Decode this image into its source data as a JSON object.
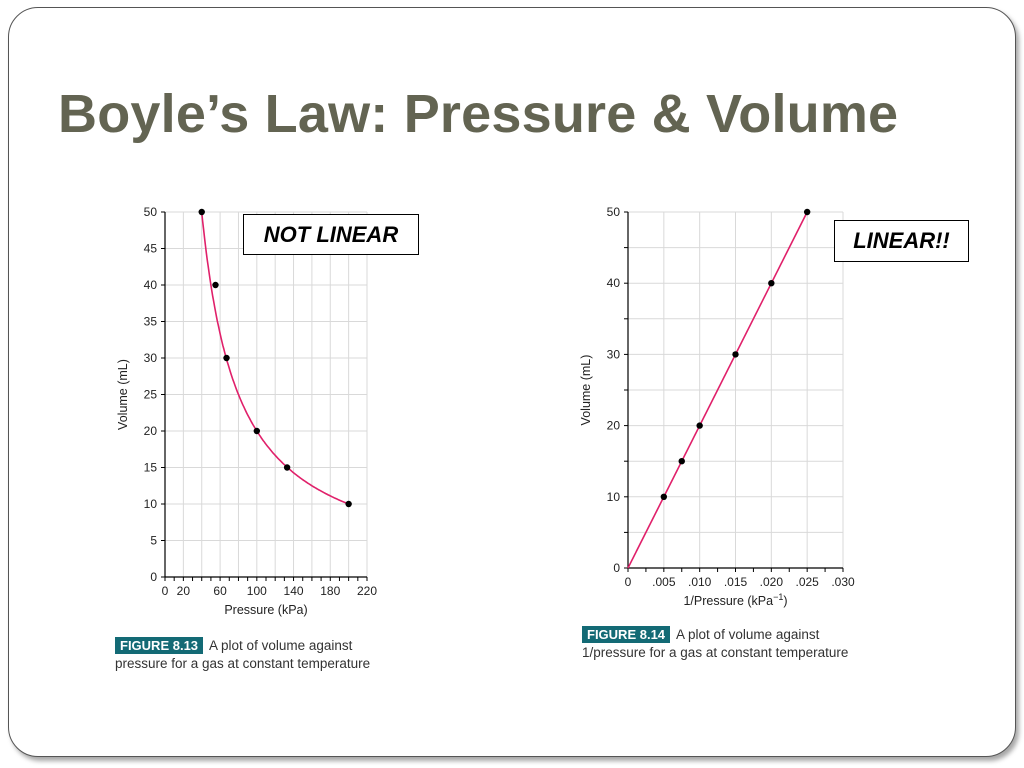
{
  "slide": {
    "title": "Boyle’s Law: Pressure & Volume"
  },
  "colors": {
    "title": "#636452",
    "curve": "#e0206a",
    "figure_tag_bg": "#136a75",
    "grid": "#d9d9d9"
  },
  "callouts": {
    "left": "NOT LINEAR",
    "right": "LINEAR!!"
  },
  "captions": {
    "left": {
      "tag": "FIGURE 8.13",
      "line1": "A plot of volume against",
      "line2": "pressure for a gas at constant temperature"
    },
    "right": {
      "tag": "FIGURE 8.14",
      "line1": "A plot of volume against",
      "line2": "1/pressure for a gas at constant temperature"
    }
  },
  "chart_data": [
    {
      "type": "scatter",
      "title": "",
      "xlabel": "Pressure (kPa)",
      "ylabel": "Volume (mL)",
      "xlim": [
        0,
        220
      ],
      "ylim": [
        0,
        50
      ],
      "x_tick_labels": [
        "0",
        "20",
        "60",
        "100",
        "140",
        "180",
        "220"
      ],
      "x_tick_values": [
        0,
        20,
        60,
        100,
        140,
        180,
        220
      ],
      "y_tick_labels": [
        "0",
        "5",
        "10",
        "15",
        "20",
        "25",
        "30",
        "35",
        "40",
        "45",
        "50"
      ],
      "y_tick_values": [
        0,
        5,
        10,
        15,
        20,
        25,
        30,
        35,
        40,
        45,
        50
      ],
      "grid": true,
      "trend": "curve",
      "series": [
        {
          "x": [
            40,
            55,
            67,
            100,
            133,
            200
          ],
          "y": [
            50,
            40,
            30,
            20,
            15,
            10
          ]
        }
      ]
    },
    {
      "type": "scatter",
      "title": "",
      "xlabel": "1/Pressure (kPa",
      "xlabel_superscript": "−1",
      "xlabel_suffix": ")",
      "ylabel": "Volume (mL)",
      "xlim": [
        0,
        0.03
      ],
      "ylim": [
        0,
        50
      ],
      "x_tick_labels": [
        "0",
        ".005",
        ".010",
        ".015",
        ".020",
        ".025",
        ".030"
      ],
      "x_tick_values": [
        0,
        0.005,
        0.01,
        0.015,
        0.02,
        0.025,
        0.03
      ],
      "y_tick_labels": [
        "0",
        "10",
        "20",
        "30",
        "40",
        "50"
      ],
      "y_tick_values": [
        0,
        10,
        20,
        30,
        40,
        50
      ],
      "grid": true,
      "trend": "line",
      "series": [
        {
          "x": [
            0.005,
            0.0075,
            0.01,
            0.015,
            0.02,
            0.025
          ],
          "y": [
            10,
            15,
            20,
            30,
            40,
            50
          ]
        }
      ]
    }
  ]
}
